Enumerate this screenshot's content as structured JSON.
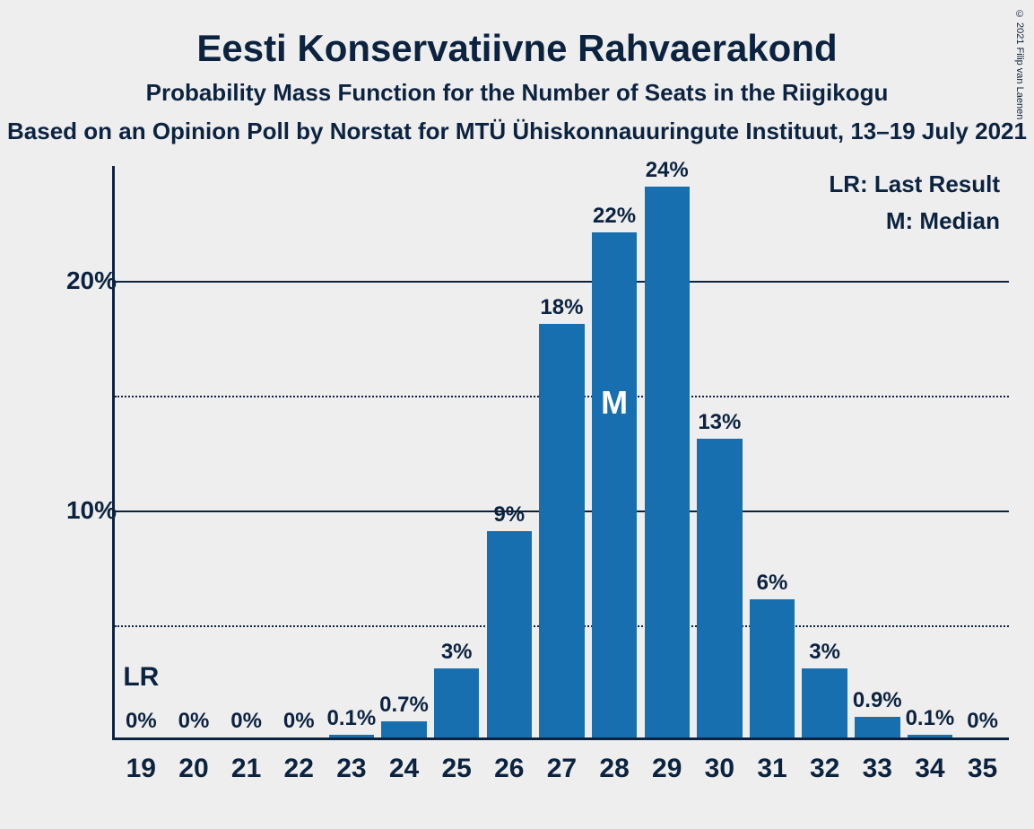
{
  "title": "Eesti Konservatiivne Rahvaerakond",
  "subtitle1": "Probability Mass Function for the Number of Seats in the Riigikogu",
  "subtitle2": "Based on an Opinion Poll by Norstat for MTÜ Ühiskonnauuringute Instituut, 13–19 July 2021",
  "copyright": "© 2021 Filip van Laenen",
  "chart": {
    "type": "bar",
    "bar_color": "#186fb0",
    "background_color": "#eeeeee",
    "text_color": "#0c2340",
    "grid_major_color": "#0c2340",
    "grid_minor_color": "#0c2340",
    "ylim_max": 25,
    "y_major_ticks": [
      10,
      20
    ],
    "y_major_labels": [
      "10%",
      "20%"
    ],
    "y_minor_ticks": [
      5,
      15
    ],
    "categories": [
      "19",
      "20",
      "21",
      "22",
      "23",
      "24",
      "25",
      "26",
      "27",
      "28",
      "29",
      "30",
      "31",
      "32",
      "33",
      "34",
      "35"
    ],
    "values": [
      0,
      0,
      0,
      0,
      0.1,
      0.7,
      3,
      9,
      18,
      22,
      24,
      13,
      6,
      3,
      0.9,
      0.1,
      0
    ],
    "value_labels": [
      "0%",
      "0%",
      "0%",
      "0%",
      "0.1%",
      "0.7%",
      "3%",
      "9%",
      "18%",
      "22%",
      "24%",
      "13%",
      "6%",
      "3%",
      "0.9%",
      "0.1%",
      "0%"
    ],
    "median_index": 9,
    "median_label": "M",
    "lr_index": 0,
    "lr_label": "LR",
    "legend": {
      "lr": "LR: Last Result",
      "m": "M: Median"
    },
    "title_fontsize": 42,
    "subtitle_fontsize": 26,
    "axis_label_fontsize": 28,
    "xtick_fontsize": 30,
    "bar_label_fontsize": 24,
    "legend_fontsize": 26
  }
}
